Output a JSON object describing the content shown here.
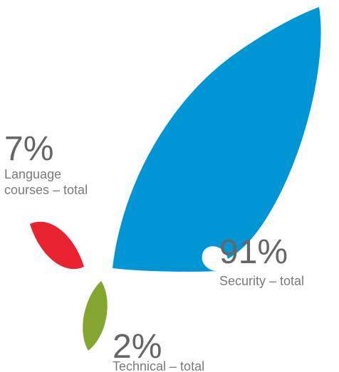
{
  "chart_data": {
    "type": "pie",
    "title": "",
    "categories": [
      "Security – total",
      "Language courses – total",
      "Technical – total"
    ],
    "values": [
      91,
      7,
      2
    ],
    "unit": "%",
    "items": [
      {
        "key": "security",
        "percent_label": "91%",
        "label_lines": [
          "Security – total"
        ],
        "color": "#0096D6"
      },
      {
        "key": "language",
        "percent_label": "7%",
        "label_lines": [
          "Language",
          "courses – total"
        ],
        "color": "#E8222E"
      },
      {
        "key": "technical",
        "percent_label": "2%",
        "label_lines": [
          "Technical – total"
        ],
        "color": "#84A631"
      }
    ],
    "legend": "none",
    "grid": false
  }
}
